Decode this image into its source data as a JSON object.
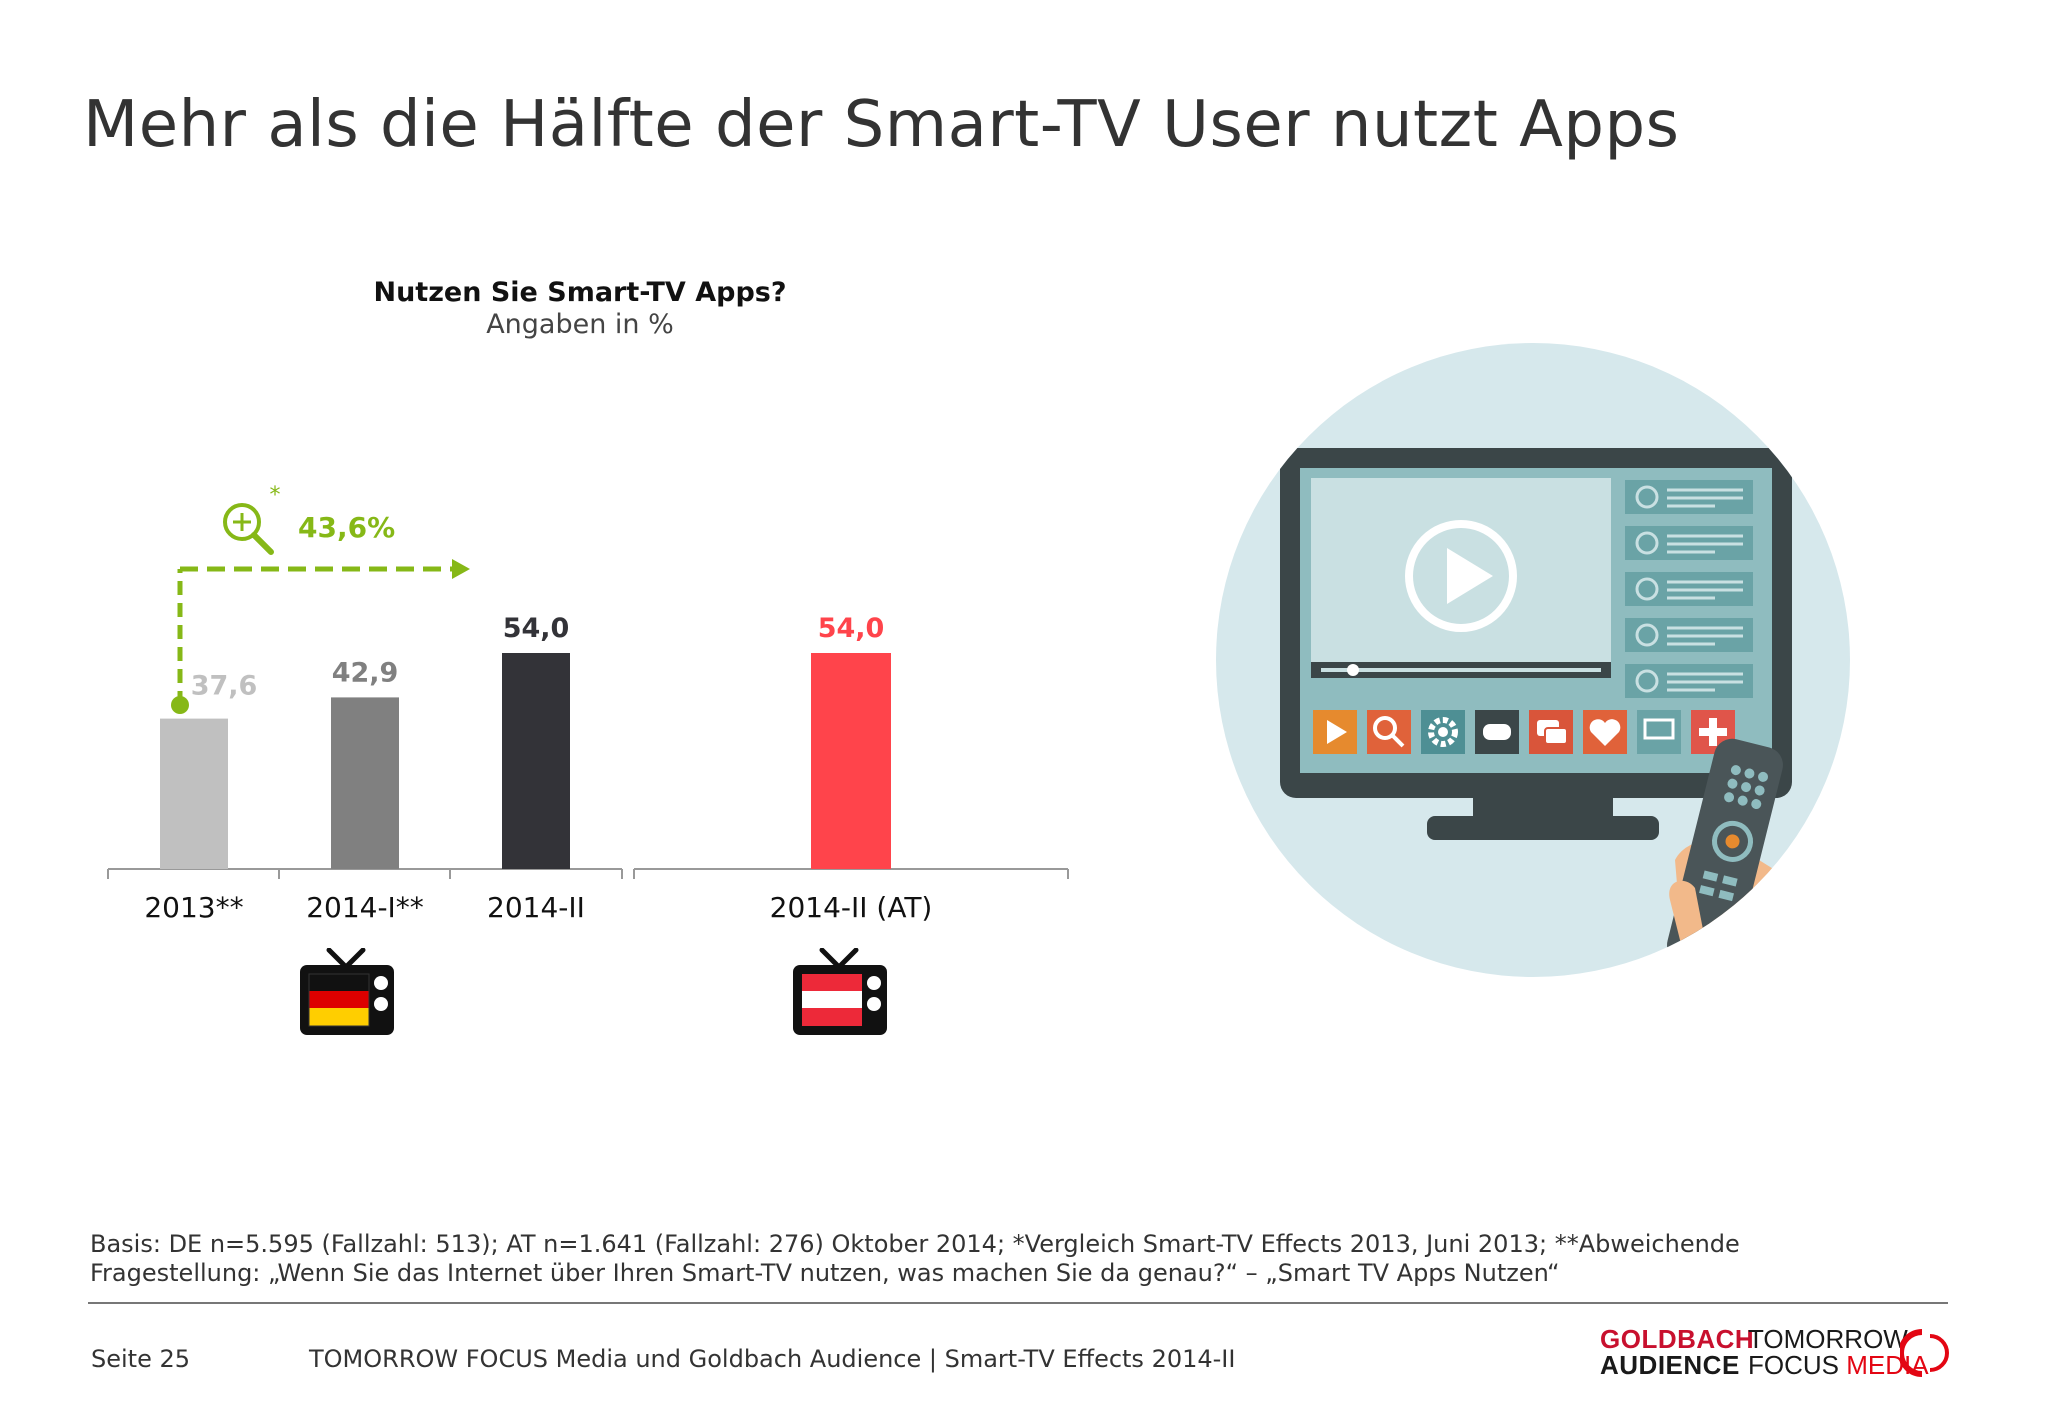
{
  "title": "Mehr als die Hälfte der Smart-TV User nutzt Apps",
  "chart_data": {
    "type": "bar",
    "title": "Nutzen Sie Smart-TV Apps?",
    "subtitle": "Angaben in %",
    "categories": [
      "2013**",
      "2014-I**",
      "2014-II",
      "2014-II (AT)"
    ],
    "values": [
      37.6,
      42.9,
      54.0,
      54.0
    ],
    "value_labels": [
      "37,6",
      "42,9",
      "54,0",
      "54,0"
    ],
    "bar_colors": [
      "#c0c0c0",
      "#808080",
      "#333338",
      "#ff444b"
    ],
    "label_colors": [
      "#c0c0c0",
      "#808080",
      "#333338",
      "#ff444b"
    ],
    "ylim": [
      0,
      60
    ],
    "groups": [
      {
        "country": "DE",
        "categories": [
          "2013**",
          "2014-I**",
          "2014-II"
        ]
      },
      {
        "country": "AT",
        "categories": [
          "2014-II (AT)"
        ]
      }
    ],
    "annotation": {
      "text": "43,6%",
      "marker": "*",
      "color": "#86b817",
      "from": "2013**",
      "to": "2014-II"
    }
  },
  "footnote": {
    "line1": "Basis: DE n=5.595 (Fallzahl: 513); AT n=1.641 (Fallzahl: 276) Oktober 2014; *Vergleich Smart-TV Effects 2013, Juni 2013; **Abweichende",
    "line2": "Fragestellung: „Wenn Sie das Internet über Ihren Smart-TV nutzen, was machen Sie da genau?“ – „Smart TV Apps Nutzen“"
  },
  "footer": {
    "page": "Seite 25",
    "text": "TOMORROW FOCUS Media und Goldbach Audience | Smart-TV Effects 2014-II"
  },
  "logos": {
    "goldbach_line1": "GOLDBACH",
    "goldbach_line2": "AUDIENCE",
    "tfm_line1": "TOMORROW",
    "tfm_line2a": "FOCUS ",
    "tfm_line2b": "MEDIA"
  },
  "icons": [
    "magnifier-plus-icon",
    "tv-flag-de-icon",
    "tv-flag-at-icon",
    "smart-tv-illustration",
    "remote-control-icon"
  ],
  "colors": {
    "accent_green": "#86b817",
    "accent_red": "#ff444b",
    "text": "#333333"
  }
}
